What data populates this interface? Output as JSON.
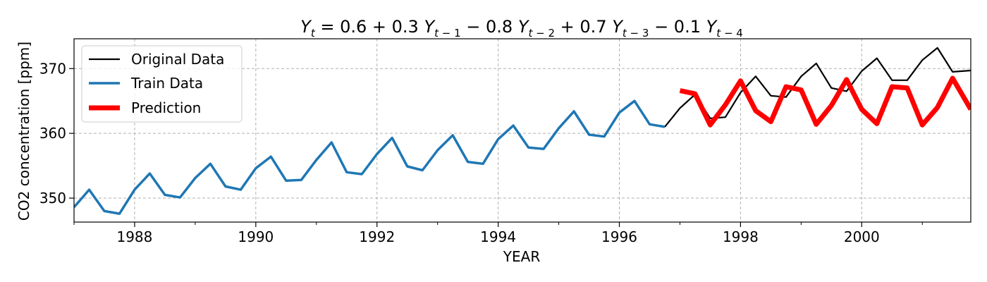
{
  "chart_data": {
    "type": "line",
    "title": "Y_t = 0.6 + 0.3 Y_{t-1} − 0.8 Y_{t-2} + 0.7 Y_{t-3} − 0.1 Y_{t-4}",
    "xlabel": "YEAR",
    "ylabel": "CO2 concentration [ppm]",
    "xlim": [
      1987.0,
      2001.8
    ],
    "ylim": [
      346.3,
      374.6
    ],
    "x_ticks": [
      1988,
      1990,
      1992,
      1994,
      1996,
      1998,
      2000
    ],
    "x_tick_labels": [
      "1988",
      "1990",
      "1992",
      "1994",
      "1996",
      "1998",
      "2000"
    ],
    "y_ticks": [
      350,
      360,
      370
    ],
    "y_tick_labels": [
      "350",
      "360",
      "370"
    ],
    "grid": true,
    "legend_position": "upper-left",
    "series": [
      {
        "name": "Original Data",
        "color": "#000000",
        "x": [
          1996.75,
          1997.0,
          1997.25,
          1997.5,
          1997.75,
          1998.0,
          1998.25,
          1998.5,
          1998.75,
          1999.0,
          1999.25,
          1999.5,
          1999.75,
          2000.0,
          2000.25,
          2000.5,
          2000.75,
          2001.0,
          2001.25,
          2001.5,
          2001.8
        ],
        "values": [
          361.0,
          363.9,
          366.0,
          362.3,
          362.5,
          366.3,
          368.8,
          365.8,
          365.6,
          368.8,
          370.8,
          367.0,
          366.5,
          369.6,
          371.6,
          368.2,
          368.2,
          371.3,
          373.2,
          369.5,
          369.7
        ]
      },
      {
        "name": "Train Data",
        "color": "#1f77b4",
        "x": [
          1987.0,
          1987.25,
          1987.5,
          1987.75,
          1988.0,
          1988.25,
          1988.5,
          1988.75,
          1989.0,
          1989.25,
          1989.5,
          1989.75,
          1990.0,
          1990.25,
          1990.5,
          1990.75,
          1991.0,
          1991.25,
          1991.5,
          1991.75,
          1992.0,
          1992.25,
          1992.5,
          1992.75,
          1993.0,
          1993.25,
          1993.5,
          1993.75,
          1994.0,
          1994.25,
          1994.5,
          1994.75,
          1995.0,
          1995.25,
          1995.5,
          1995.75,
          1996.0,
          1996.25,
          1996.5,
          1996.75
        ],
        "values": [
          348.6,
          351.3,
          348.0,
          347.6,
          351.3,
          353.8,
          350.5,
          350.1,
          353.1,
          355.3,
          351.8,
          351.3,
          354.6,
          356.4,
          352.7,
          352.8,
          355.9,
          358.6,
          354.0,
          353.7,
          356.8,
          359.3,
          354.9,
          354.3,
          357.4,
          359.7,
          355.6,
          355.3,
          359.1,
          361.2,
          357.8,
          357.6,
          360.8,
          363.4,
          359.8,
          359.5,
          363.2,
          365.0,
          361.4,
          361.0
        ]
      },
      {
        "name": "Prediction",
        "color": "#ff0000",
        "x": [
          1997.0,
          1997.25,
          1997.5,
          1997.75,
          1998.0,
          1998.25,
          1998.5,
          1998.75,
          1999.0,
          1999.25,
          1999.5,
          1999.75,
          2000.0,
          2000.25,
          2000.5,
          2000.75,
          2001.0,
          2001.25,
          2001.5,
          2001.8
        ],
        "values": [
          366.6,
          366.1,
          361.3,
          364.4,
          368.1,
          363.5,
          361.8,
          367.2,
          366.7,
          361.4,
          364.3,
          368.3,
          363.7,
          361.5,
          367.2,
          367.0,
          361.3,
          364.0,
          368.5,
          363.7
        ]
      }
    ]
  }
}
